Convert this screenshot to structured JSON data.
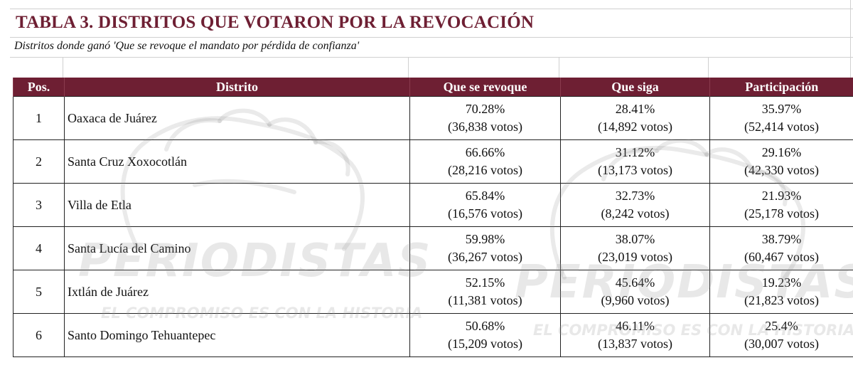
{
  "title": "TABLA 3. DISTRITOS QUE VOTARON POR LA REVOCACIÓN",
  "subtitle": "Distritos donde ganó 'Que se revoque el mandato por pérdida de confianza'",
  "columns": [
    "Pos.",
    "Distrito",
    "Que se revoque",
    "Que siga",
    "Participación"
  ],
  "rows": [
    {
      "pos": "1",
      "distrito": "Oaxaca de Juárez",
      "revoque_pct": "70.28%",
      "revoque_votos": "(36,838 votos)",
      "siga_pct": "28.41%",
      "siga_votos": "(14,892 votos)",
      "part_pct": "35.97%",
      "part_votos": "(52,414 votos)"
    },
    {
      "pos": "2",
      "distrito": "Santa Cruz Xoxocotlán",
      "revoque_pct": "66.66%",
      "revoque_votos": "(28,216 votos)",
      "siga_pct": "31.12%",
      "siga_votos": "(13,173 votos)",
      "part_pct": "29.16%",
      "part_votos": "(42,330 votos)"
    },
    {
      "pos": "3",
      "distrito": "Villa de Etla",
      "revoque_pct": "65.84%",
      "revoque_votos": "(16,576 votos)",
      "siga_pct": "32.73%",
      "siga_votos": "(8,242 votos)",
      "part_pct": "21.93%",
      "part_votos": "(25,178 votos)"
    },
    {
      "pos": "4",
      "distrito": "Santa Lucía del Camino",
      "revoque_pct": "59.98%",
      "revoque_votos": "(36,267 votos)",
      "siga_pct": "38.07%",
      "siga_votos": "(23,019 votos)",
      "part_pct": "38.79%",
      "part_votos": "(60,467 votos)"
    },
    {
      "pos": "5",
      "distrito": "Ixtlán de Juárez",
      "revoque_pct": "52.15%",
      "revoque_votos": "(11,381 votos)",
      "siga_pct": "45.64%",
      "siga_votos": "(9,960 votos)",
      "part_pct": "19.23%",
      "part_votos": "(21,823 votos)"
    },
    {
      "pos": "6",
      "distrito": "Santo Domingo Tehuantepec",
      "revoque_pct": "50.68%",
      "revoque_votos": "(15,209 votos)",
      "siga_pct": "46.11%",
      "siga_votos": "(13,837 votos)",
      "part_pct": "25.4%",
      "part_votos": "(30,007 votos)"
    }
  ],
  "watermark": {
    "brand": "PERIODISTAS",
    "tagline": "EL COMPROMISO ES CON LA HISTORIA"
  },
  "colors": {
    "header_bg": "#6e1f33",
    "title": "#6e1f33"
  }
}
